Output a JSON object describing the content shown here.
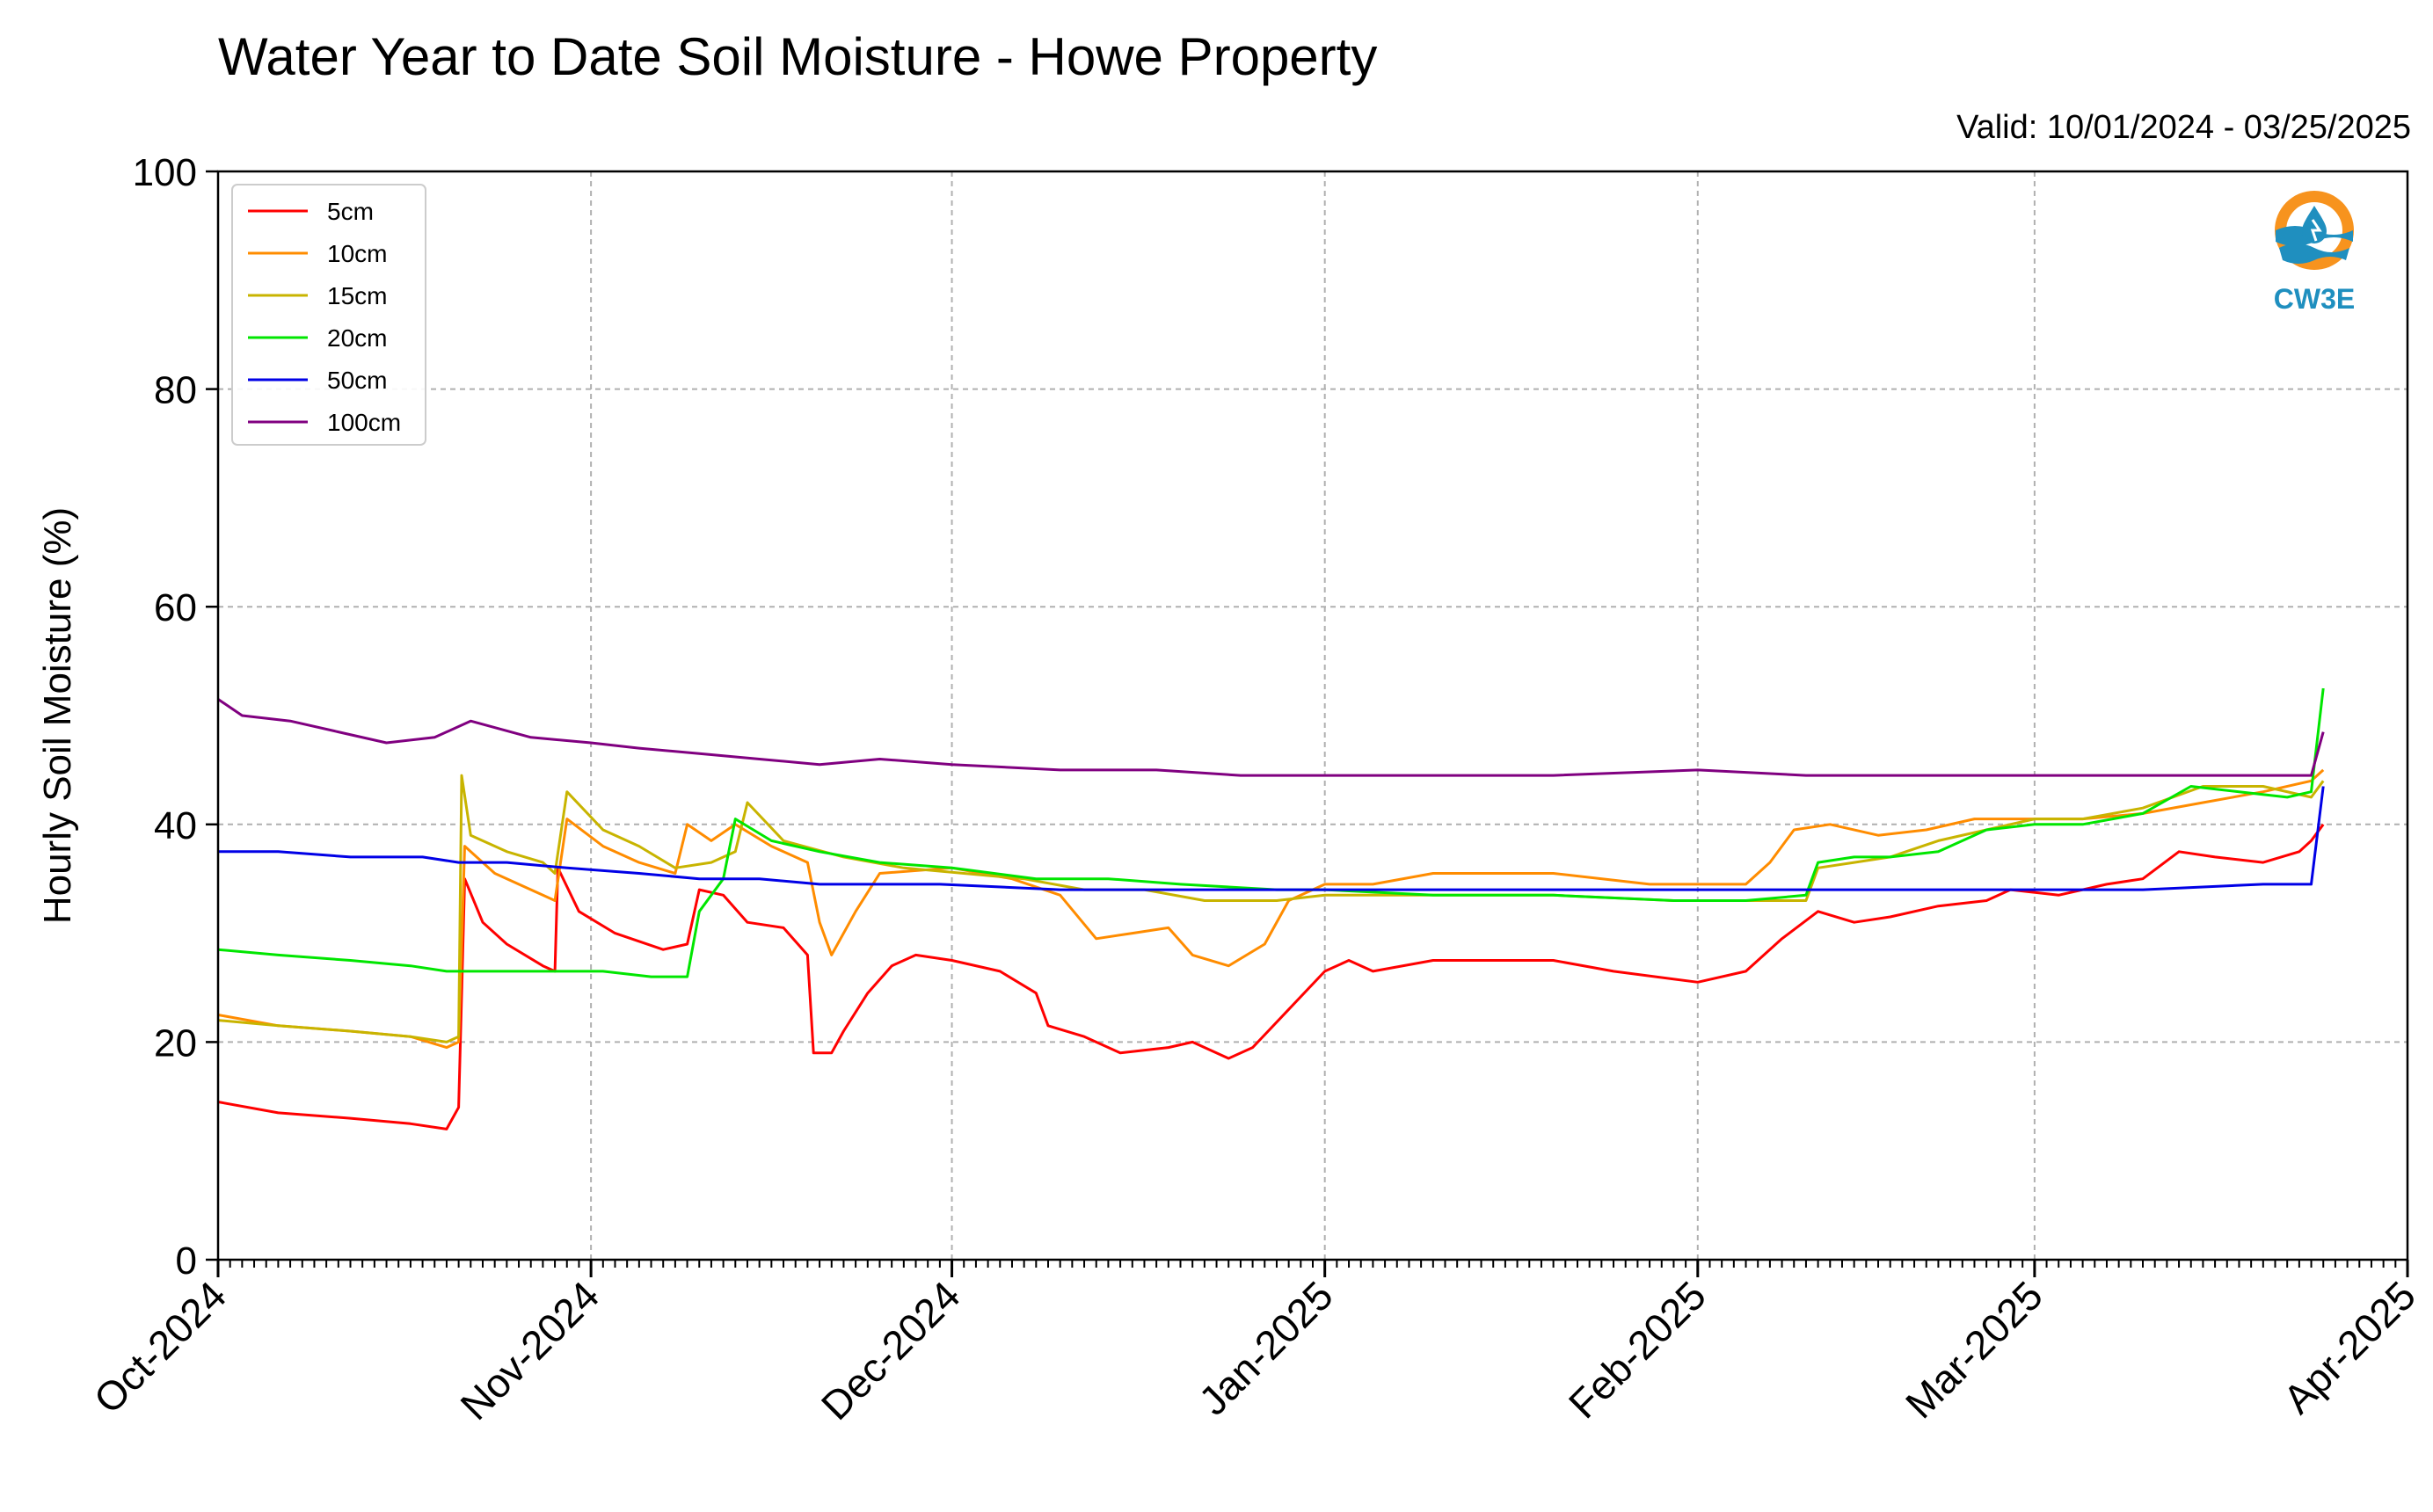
{
  "title": "Water Year to Date Soil Moisture - Howe Property",
  "valid_text": "Valid: 10/01/2024 - 03/25/2025",
  "logo_text": "CW3E",
  "chart_data": {
    "type": "line",
    "title": "Water Year to Date Soil Moisture - Howe Property",
    "subtitle": "Valid: 10/01/2024 - 03/25/2025",
    "xlabel": "",
    "ylabel": "Hourly Soil Moisture (%)",
    "xlim": [
      "2024-10-01",
      "2025-04-01"
    ],
    "ylim": [
      0,
      100
    ],
    "yticks": [
      0,
      20,
      40,
      60,
      80,
      100
    ],
    "xticks": [
      {
        "date": "2024-10-01",
        "label": "Oct-2024"
      },
      {
        "date": "2024-11-01",
        "label": "Nov-2024"
      },
      {
        "date": "2024-12-01",
        "label": "Dec-2024"
      },
      {
        "date": "2025-01-01",
        "label": "Jan-2025"
      },
      {
        "date": "2025-02-01",
        "label": "Feb-2025"
      },
      {
        "date": "2025-03-01",
        "label": "Mar-2025"
      },
      {
        "date": "2025-04-01",
        "label": "Apr-2025"
      }
    ],
    "grid": true,
    "legend_position": "top-left",
    "series": [
      {
        "name": "5cm",
        "color": "#ff0000",
        "points": [
          [
            "2024-10-01",
            14.5
          ],
          [
            "2024-10-06",
            13.5
          ],
          [
            "2024-10-12",
            13
          ],
          [
            "2024-10-17",
            12.5
          ],
          [
            "2024-10-20",
            12
          ],
          [
            "2024-10-21",
            14
          ],
          [
            "2024-10-21T12",
            35
          ],
          [
            "2024-10-23",
            31
          ],
          [
            "2024-10-25",
            29
          ],
          [
            "2024-10-28",
            27
          ],
          [
            "2024-10-29",
            26.5
          ],
          [
            "2024-10-29T06",
            36
          ],
          [
            "2024-10-31",
            32
          ],
          [
            "2024-11-03",
            30
          ],
          [
            "2024-11-07",
            28.5
          ],
          [
            "2024-11-09",
            29
          ],
          [
            "2024-11-10",
            34
          ],
          [
            "2024-11-12",
            33.5
          ],
          [
            "2024-11-14",
            31
          ],
          [
            "2024-11-17",
            30.5
          ],
          [
            "2024-11-19",
            28
          ],
          [
            "2024-11-19T12",
            19
          ],
          [
            "2024-11-21",
            19
          ],
          [
            "2024-11-22",
            21
          ],
          [
            "2024-11-24",
            24.5
          ],
          [
            "2024-11-26",
            27
          ],
          [
            "2024-11-28",
            28
          ],
          [
            "2024-12-01",
            27.5
          ],
          [
            "2024-12-05",
            26.5
          ],
          [
            "2024-12-08",
            24.5
          ],
          [
            "2024-12-09",
            21.5
          ],
          [
            "2024-12-12",
            20.5
          ],
          [
            "2024-12-15",
            19
          ],
          [
            "2024-12-19",
            19.5
          ],
          [
            "2024-12-21",
            20
          ],
          [
            "2024-12-24",
            18.5
          ],
          [
            "2024-12-26",
            19.5
          ],
          [
            "2024-12-29",
            23
          ],
          [
            "2025-01-01",
            26.5
          ],
          [
            "2025-01-03",
            27.5
          ],
          [
            "2025-01-05",
            26.5
          ],
          [
            "2025-01-10",
            27.5
          ],
          [
            "2025-01-20",
            27.5
          ],
          [
            "2025-01-25",
            26.5
          ],
          [
            "2025-02-01",
            25.5
          ],
          [
            "2025-02-05",
            26.5
          ],
          [
            "2025-02-08",
            29.5
          ],
          [
            "2025-02-11",
            32
          ],
          [
            "2025-02-14",
            31
          ],
          [
            "2025-02-17",
            31.5
          ],
          [
            "2025-02-21",
            32.5
          ],
          [
            "2025-02-25",
            33
          ],
          [
            "2025-02-27",
            34
          ],
          [
            "2025-03-03",
            33.5
          ],
          [
            "2025-03-07",
            34.5
          ],
          [
            "2025-03-10",
            35
          ],
          [
            "2025-03-13",
            37.5
          ],
          [
            "2025-03-16",
            37
          ],
          [
            "2025-03-20",
            36.5
          ],
          [
            "2025-03-23",
            37.5
          ],
          [
            "2025-03-24",
            38.5
          ],
          [
            "2025-03-25",
            40
          ]
        ]
      },
      {
        "name": "10cm",
        "color": "#ff8c00",
        "points": [
          [
            "2024-10-01",
            22.5
          ],
          [
            "2024-10-06",
            21.5
          ],
          [
            "2024-10-12",
            21
          ],
          [
            "2024-10-17",
            20.5
          ],
          [
            "2024-10-20",
            19.5
          ],
          [
            "2024-10-21",
            20
          ],
          [
            "2024-10-21T12",
            38
          ],
          [
            "2024-10-24",
            35.5
          ],
          [
            "2024-10-28",
            33.5
          ],
          [
            "2024-10-29",
            33
          ],
          [
            "2024-10-30",
            40.5
          ],
          [
            "2024-11-02",
            38
          ],
          [
            "2024-11-05",
            36.5
          ],
          [
            "2024-11-08",
            35.5
          ],
          [
            "2024-11-09",
            40
          ],
          [
            "2024-11-11",
            38.5
          ],
          [
            "2024-11-13",
            40
          ],
          [
            "2024-11-16",
            38
          ],
          [
            "2024-11-19",
            36.5
          ],
          [
            "2024-11-20",
            31
          ],
          [
            "2024-11-21",
            28
          ],
          [
            "2024-11-23",
            32
          ],
          [
            "2024-11-25",
            35.5
          ],
          [
            "2024-12-01",
            36
          ],
          [
            "2024-12-06",
            35
          ],
          [
            "2024-12-10",
            33.5
          ],
          [
            "2024-12-13",
            29.5
          ],
          [
            "2024-12-16",
            30
          ],
          [
            "2024-12-19",
            30.5
          ],
          [
            "2024-12-21",
            28
          ],
          [
            "2024-12-24",
            27
          ],
          [
            "2024-12-27",
            29
          ],
          [
            "2024-12-29",
            33
          ],
          [
            "2025-01-01",
            34.5
          ],
          [
            "2025-01-05",
            34.5
          ],
          [
            "2025-01-10",
            35.5
          ],
          [
            "2025-01-20",
            35.5
          ],
          [
            "2025-01-28",
            34.5
          ],
          [
            "2025-02-05",
            34.5
          ],
          [
            "2025-02-07",
            36.5
          ],
          [
            "2025-02-09",
            39.5
          ],
          [
            "2025-02-12",
            40
          ],
          [
            "2025-02-16",
            39
          ],
          [
            "2025-02-20",
            39.5
          ],
          [
            "2025-02-24",
            40.5
          ],
          [
            "2025-03-01",
            40.5
          ],
          [
            "2025-03-05",
            40.5
          ],
          [
            "2025-03-10",
            41
          ],
          [
            "2025-03-15",
            42
          ],
          [
            "2025-03-20",
            43
          ],
          [
            "2025-03-24",
            44
          ],
          [
            "2025-03-25",
            45
          ]
        ]
      },
      {
        "name": "15cm",
        "color": "#c8b400",
        "points": [
          [
            "2024-10-01",
            22
          ],
          [
            "2024-10-06",
            21.5
          ],
          [
            "2024-10-12",
            21
          ],
          [
            "2024-10-17",
            20.5
          ],
          [
            "2024-10-20",
            20
          ],
          [
            "2024-10-21",
            20.5
          ],
          [
            "2024-10-21T06",
            44.5
          ],
          [
            "2024-10-22",
            39
          ],
          [
            "2024-10-25",
            37.5
          ],
          [
            "2024-10-28",
            36.5
          ],
          [
            "2024-10-29",
            35.5
          ],
          [
            "2024-10-30",
            43
          ],
          [
            "2024-11-02",
            39.5
          ],
          [
            "2024-11-05",
            38
          ],
          [
            "2024-11-08",
            36
          ],
          [
            "2024-11-11",
            36.5
          ],
          [
            "2024-11-13",
            37.5
          ],
          [
            "2024-11-14",
            42
          ],
          [
            "2024-11-17",
            38.5
          ],
          [
            "2024-11-22",
            37
          ],
          [
            "2024-11-27",
            36
          ],
          [
            "2024-12-02",
            35.5
          ],
          [
            "2024-12-07",
            35
          ],
          [
            "2024-12-12",
            34
          ],
          [
            "2024-12-17",
            34
          ],
          [
            "2024-12-22",
            33
          ],
          [
            "2024-12-28",
            33
          ],
          [
            "2025-01-01",
            33.5
          ],
          [
            "2025-01-10",
            33.5
          ],
          [
            "2025-01-20",
            33.5
          ],
          [
            "2025-01-30",
            33
          ],
          [
            "2025-02-05",
            33
          ],
          [
            "2025-02-10",
            33
          ],
          [
            "2025-02-11",
            36
          ],
          [
            "2025-02-14",
            36.5
          ],
          [
            "2025-02-17",
            37
          ],
          [
            "2025-02-21",
            38.5
          ],
          [
            "2025-02-25",
            39.5
          ],
          [
            "2025-03-01",
            40.5
          ],
          [
            "2025-03-05",
            40.5
          ],
          [
            "2025-03-10",
            41.5
          ],
          [
            "2025-03-15",
            43.5
          ],
          [
            "2025-03-20",
            43.5
          ],
          [
            "2025-03-24",
            42.5
          ],
          [
            "2025-03-25",
            44
          ]
        ]
      },
      {
        "name": "20cm",
        "color": "#00e600",
        "points": [
          [
            "2024-10-01",
            28.5
          ],
          [
            "2024-10-06",
            28
          ],
          [
            "2024-10-12",
            27.5
          ],
          [
            "2024-10-17",
            27
          ],
          [
            "2024-10-20",
            26.5
          ],
          [
            "2024-10-24",
            26.5
          ],
          [
            "2024-10-28",
            26.5
          ],
          [
            "2024-11-02",
            26.5
          ],
          [
            "2024-11-06",
            26
          ],
          [
            "2024-11-09",
            26
          ],
          [
            "2024-11-10",
            32
          ],
          [
            "2024-11-12",
            35
          ],
          [
            "2024-11-13",
            40.5
          ],
          [
            "2024-11-16",
            38.5
          ],
          [
            "2024-11-20",
            37.5
          ],
          [
            "2024-11-25",
            36.5
          ],
          [
            "2024-12-01",
            36
          ],
          [
            "2024-12-08",
            35
          ],
          [
            "2024-12-14",
            35
          ],
          [
            "2024-12-20",
            34.5
          ],
          [
            "2024-12-28",
            34
          ],
          [
            "2025-01-01",
            34
          ],
          [
            "2025-01-10",
            33.5
          ],
          [
            "2025-01-20",
            33.5
          ],
          [
            "2025-01-30",
            33
          ],
          [
            "2025-02-05",
            33
          ],
          [
            "2025-02-10",
            33.5
          ],
          [
            "2025-02-11",
            36.5
          ],
          [
            "2025-02-14",
            37
          ],
          [
            "2025-02-17",
            37
          ],
          [
            "2025-02-21",
            37.5
          ],
          [
            "2025-02-25",
            39.5
          ],
          [
            "2025-03-01",
            40
          ],
          [
            "2025-03-05",
            40
          ],
          [
            "2025-03-10",
            41
          ],
          [
            "2025-03-14",
            43.5
          ],
          [
            "2025-03-18",
            43
          ],
          [
            "2025-03-22",
            42.5
          ],
          [
            "2025-03-24",
            43
          ],
          [
            "2025-03-25",
            52.5
          ]
        ]
      },
      {
        "name": "50cm",
        "color": "#0000e6",
        "points": [
          [
            "2024-10-01",
            37.5
          ],
          [
            "2024-10-06",
            37.5
          ],
          [
            "2024-10-12",
            37
          ],
          [
            "2024-10-18",
            37
          ],
          [
            "2024-10-21",
            36.5
          ],
          [
            "2024-10-25",
            36.5
          ],
          [
            "2024-10-30",
            36
          ],
          [
            "2024-11-05",
            35.5
          ],
          [
            "2024-11-10",
            35
          ],
          [
            "2024-11-15",
            35
          ],
          [
            "2024-11-20",
            34.5
          ],
          [
            "2024-11-30",
            34.5
          ],
          [
            "2024-12-10",
            34
          ],
          [
            "2024-12-20",
            34
          ],
          [
            "2025-01-01",
            34
          ],
          [
            "2025-01-15",
            34
          ],
          [
            "2025-02-01",
            34
          ],
          [
            "2025-02-15",
            34
          ],
          [
            "2025-03-01",
            34
          ],
          [
            "2025-03-10",
            34
          ],
          [
            "2025-03-20",
            34.5
          ],
          [
            "2025-03-24",
            34.5
          ],
          [
            "2025-03-25",
            43.5
          ]
        ]
      },
      {
        "name": "100cm",
        "color": "#800080",
        "points": [
          [
            "2024-10-01",
            51.5
          ],
          [
            "2024-10-03",
            50
          ],
          [
            "2024-10-07",
            49.5
          ],
          [
            "2024-10-11",
            48.5
          ],
          [
            "2024-10-15",
            47.5
          ],
          [
            "2024-10-19",
            48
          ],
          [
            "2024-10-22",
            49.5
          ],
          [
            "2024-10-27",
            48
          ],
          [
            "2024-11-01",
            47.5
          ],
          [
            "2024-11-05",
            47
          ],
          [
            "2024-11-10",
            46.5
          ],
          [
            "2024-11-15",
            46
          ],
          [
            "2024-11-20",
            45.5
          ],
          [
            "2024-11-25",
            46
          ],
          [
            "2024-12-01",
            45.5
          ],
          [
            "2024-12-10",
            45
          ],
          [
            "2024-12-18",
            45
          ],
          [
            "2024-12-25",
            44.5
          ],
          [
            "2025-01-01",
            44.5
          ],
          [
            "2025-01-10",
            44.5
          ],
          [
            "2025-01-20",
            44.5
          ],
          [
            "2025-02-01",
            45
          ],
          [
            "2025-02-10",
            44.5
          ],
          [
            "2025-02-20",
            44.5
          ],
          [
            "2025-03-01",
            44.5
          ],
          [
            "2025-03-10",
            44.5
          ],
          [
            "2025-03-20",
            44.5
          ],
          [
            "2025-03-24",
            44.5
          ],
          [
            "2025-03-25",
            48.5
          ]
        ]
      }
    ]
  }
}
